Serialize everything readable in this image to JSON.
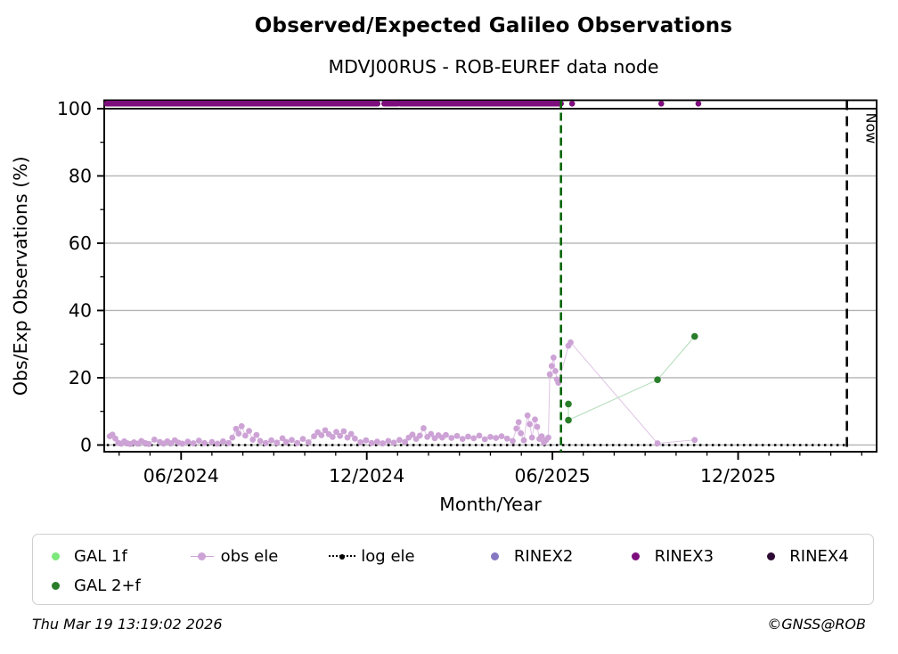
{
  "header": {
    "title": "Observed/Expected Galileo Observations",
    "subtitle": "MDVJ00RUS - ROB-EUREF data node"
  },
  "footer": {
    "timestamp": "Thu Mar 19 13:19:02 2026",
    "copyright": "©GNSS@ROB"
  },
  "legend": {
    "rows": [
      [
        {
          "label": "GAL 1f",
          "color": "#7de87d",
          "type": "dot"
        },
        {
          "label": "obs ele",
          "color": "#cda3d6",
          "type": "dot-line"
        },
        {
          "label": "log ele",
          "color": "#000000",
          "type": "dotted-line"
        },
        {
          "label": "RINEX2",
          "color": "#8677c2",
          "type": "dot"
        },
        {
          "label": "RINEX3",
          "color": "#7d0d7d",
          "type": "dot"
        },
        {
          "label": "RINEX4",
          "color": "#2d0a33",
          "type": "dot"
        }
      ],
      [
        {
          "label": "GAL 2+f",
          "color": "#2a7e2a",
          "type": "dot"
        }
      ]
    ]
  },
  "chart_data": {
    "type": "scatter",
    "title": "Observed/Expected Galileo Observations",
    "subtitle": "MDVJ00RUS - ROB-EUREF data node",
    "xlabel": "Month/Year",
    "ylabel": "Obs/Exp Observations (%)",
    "x_unit": "decimal_year",
    "xlim": [
      2024.21,
      2026.29
    ],
    "ylim": [
      -2,
      102.5
    ],
    "grid": true,
    "grid_color": "#b3b3b3",
    "yticks": [
      0,
      20,
      40,
      60,
      80,
      100
    ],
    "yticks_minor": [
      10,
      30,
      50,
      70,
      90
    ],
    "xticks": [
      {
        "t": 2024.417,
        "label": "06/2024"
      },
      {
        "t": 2024.917,
        "label": "12/2024"
      },
      {
        "t": 2025.417,
        "label": "06/2025"
      },
      {
        "t": 2025.917,
        "label": "12/2025"
      }
    ],
    "xminor_step_years": 0.08333,
    "hline": {
      "y": 100,
      "color": "#000000"
    },
    "vlines": [
      {
        "name": "last-data-line",
        "t": 2025.44,
        "color": "#006400",
        "dash": "9 5",
        "width": 2.6,
        "label": ""
      },
      {
        "name": "now-line",
        "t": 2026.21,
        "color": "#000000",
        "dash": "11 7",
        "width": 2.6,
        "label": "Now"
      }
    ],
    "series": {
      "rinex3": {
        "name": "RINEX3",
        "color": "#7d0d7d",
        "y": 101.5,
        "band_segments": [
          [
            2024.217,
            2024.946
          ],
          [
            2024.964,
            2025.0
          ],
          [
            2025.008,
            2025.44
          ]
        ],
        "isolated_t": [
          2025.47,
          2025.71,
          2025.81
        ]
      },
      "rinex2": {
        "name": "RINEX2",
        "color": "#8677c2",
        "points": []
      },
      "rinex4": {
        "name": "RINEX4",
        "color": "#2d0a33",
        "points": []
      },
      "gal_1f": {
        "name": "GAL 1f",
        "color": "#7de87d",
        "points": []
      },
      "gal_2f": {
        "name": "GAL 2+f",
        "color": "#2a7e2a",
        "line_color": "#b5debc",
        "points": [
          [
            2025.46,
            12.2
          ],
          [
            2025.46,
            7.4
          ],
          [
            2025.7,
            19.4
          ],
          [
            2025.8,
            32.3
          ]
        ]
      },
      "log_ele": {
        "name": "log ele",
        "color": "#000000",
        "y": 0,
        "t_start": 2024.217,
        "t_end": 2026.21
      },
      "obs_ele": {
        "name": "obs ele",
        "color": "#cda3d6",
        "points": [
          [
            2024.225,
            2.6
          ],
          [
            2024.232,
            3.1
          ],
          [
            2024.24,
            1.9
          ],
          [
            2024.248,
            0.6
          ],
          [
            2024.256,
            0.4
          ],
          [
            2024.264,
            1.1
          ],
          [
            2024.272,
            0.5
          ],
          [
            2024.28,
            0.3
          ],
          [
            2024.29,
            0.8
          ],
          [
            2024.3,
            0.4
          ],
          [
            2024.31,
            1.2
          ],
          [
            2024.32,
            0.6
          ],
          [
            2024.33,
            0.3
          ],
          [
            2024.345,
            1.6
          ],
          [
            2024.36,
            0.9
          ],
          [
            2024.37,
            0.4
          ],
          [
            2024.38,
            1.1
          ],
          [
            2024.39,
            0.5
          ],
          [
            2024.4,
            1.4
          ],
          [
            2024.41,
            0.7
          ],
          [
            2024.42,
            0.4
          ],
          [
            2024.435,
            1.0
          ],
          [
            2024.45,
            0.5
          ],
          [
            2024.465,
            1.3
          ],
          [
            2024.48,
            0.6
          ],
          [
            2024.5,
            0.9
          ],
          [
            2024.515,
            0.4
          ],
          [
            2024.53,
            1.1
          ],
          [
            2024.545,
            0.6
          ],
          [
            2024.555,
            2.2
          ],
          [
            2024.565,
            4.8
          ],
          [
            2024.572,
            3.4
          ],
          [
            2024.58,
            5.6
          ],
          [
            2024.59,
            2.8
          ],
          [
            2024.6,
            4.2
          ],
          [
            2024.61,
            1.6
          ],
          [
            2024.62,
            3.0
          ],
          [
            2024.63,
            1.2
          ],
          [
            2024.645,
            0.6
          ],
          [
            2024.66,
            1.4
          ],
          [
            2024.675,
            0.7
          ],
          [
            2024.69,
            2.0
          ],
          [
            2024.7,
            0.9
          ],
          [
            2024.715,
            1.5
          ],
          [
            2024.73,
            0.6
          ],
          [
            2024.745,
            1.8
          ],
          [
            2024.76,
            0.8
          ],
          [
            2024.775,
            2.6
          ],
          [
            2024.785,
            3.8
          ],
          [
            2024.795,
            2.9
          ],
          [
            2024.805,
            4.4
          ],
          [
            2024.815,
            3.2
          ],
          [
            2024.825,
            2.4
          ],
          [
            2024.835,
            3.9
          ],
          [
            2024.845,
            2.7
          ],
          [
            2024.855,
            4.1
          ],
          [
            2024.865,
            2.2
          ],
          [
            2024.875,
            3.3
          ],
          [
            2024.885,
            1.9
          ],
          [
            2024.9,
            0.8
          ],
          [
            2024.915,
            1.4
          ],
          [
            2024.93,
            0.6
          ],
          [
            2024.945,
            1.0
          ],
          [
            2024.96,
            0.5
          ],
          [
            2024.975,
            1.2
          ],
          [
            2024.99,
            0.7
          ],
          [
            2025.005,
            1.5
          ],
          [
            2025.02,
            0.9
          ],
          [
            2025.03,
            2.2
          ],
          [
            2025.04,
            3.1
          ],
          [
            2025.05,
            1.8
          ],
          [
            2025.06,
            2.8
          ],
          [
            2025.07,
            5.0
          ],
          [
            2025.08,
            2.4
          ],
          [
            2025.09,
            3.3
          ],
          [
            2025.1,
            2.0
          ],
          [
            2025.11,
            2.9
          ],
          [
            2025.12,
            2.2
          ],
          [
            2025.13,
            3.0
          ],
          [
            2025.145,
            2.1
          ],
          [
            2025.16,
            2.7
          ],
          [
            2025.175,
            1.8
          ],
          [
            2025.19,
            2.5
          ],
          [
            2025.205,
            2.0
          ],
          [
            2025.22,
            2.8
          ],
          [
            2025.235,
            1.7
          ],
          [
            2025.25,
            2.4
          ],
          [
            2025.265,
            2.1
          ],
          [
            2025.28,
            2.6
          ],
          [
            2025.295,
            1.9
          ],
          [
            2025.31,
            1.2
          ],
          [
            2025.32,
            4.9
          ],
          [
            2025.326,
            6.8
          ],
          [
            2025.332,
            3.5
          ],
          [
            2025.34,
            1.4
          ],
          [
            2025.35,
            8.8
          ],
          [
            2025.356,
            6.2
          ],
          [
            2025.362,
            2.2
          ],
          [
            2025.37,
            7.6
          ],
          [
            2025.376,
            5.4
          ],
          [
            2025.382,
            1.8
          ],
          [
            2025.388,
            2.6
          ],
          [
            2025.394,
            0.8
          ],
          [
            2025.4,
            1.5
          ],
          [
            2025.406,
            2.2
          ],
          [
            2025.41,
            21.0
          ],
          [
            2025.415,
            23.5
          ],
          [
            2025.42,
            26.0
          ],
          [
            2025.425,
            22.0
          ],
          [
            2025.429,
            19.5
          ],
          [
            2025.433,
            18.5
          ],
          [
            2025.46,
            29.5
          ],
          [
            2025.466,
            30.5
          ],
          [
            2025.7,
            0.5
          ],
          [
            2025.8,
            1.5
          ]
        ]
      }
    },
    "legend_entries": [
      "GAL 1f",
      "obs ele",
      "log ele",
      "RINEX2",
      "RINEX3",
      "RINEX4",
      "GAL 2+f"
    ],
    "now_label": "Now"
  }
}
